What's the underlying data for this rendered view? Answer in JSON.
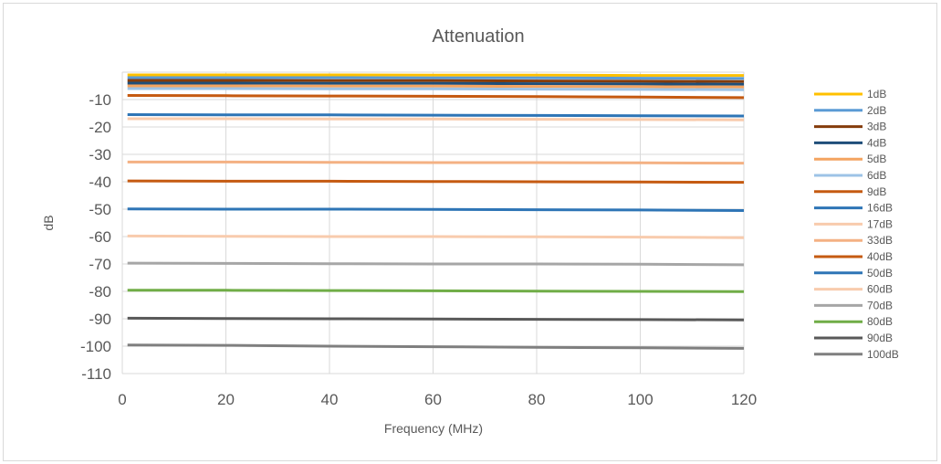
{
  "chart_data": {
    "type": "line",
    "title": "Attenuation",
    "xlabel": "Frequency (MHz)",
    "ylabel": "dB",
    "xlim": [
      0,
      120
    ],
    "ylim": [
      -110,
      0
    ],
    "x_ticks": [
      0,
      20,
      40,
      60,
      80,
      100,
      120
    ],
    "y_ticks": [
      -10,
      -20,
      -30,
      -40,
      -50,
      -60,
      -70,
      -80,
      -90,
      -100,
      -110
    ],
    "grid": true,
    "legend": "right",
    "x": [
      1,
      20,
      40,
      60,
      80,
      100,
      120
    ],
    "series": [
      {
        "name": "1dB",
        "color": "#FFC000",
        "values": [
          -1.0,
          -1.0,
          -1.0,
          -1.1,
          -1.1,
          -1.2,
          -1.2
        ]
      },
      {
        "name": "2dB",
        "color": "#5B9BD5",
        "values": [
          -2.0,
          -2.0,
          -2.0,
          -2.1,
          -2.1,
          -2.2,
          -2.3
        ]
      },
      {
        "name": "3dB",
        "color": "#843C0C",
        "values": [
          -3.0,
          -3.0,
          -3.1,
          -3.1,
          -3.2,
          -3.3,
          -3.4
        ]
      },
      {
        "name": "4dB",
        "color": "#1F4E79",
        "values": [
          -4.0,
          -4.0,
          -4.1,
          -4.1,
          -4.2,
          -4.3,
          -4.4
        ]
      },
      {
        "name": "5dB",
        "color": "#F4A460",
        "values": [
          -5.0,
          -5.0,
          -5.1,
          -5.1,
          -5.2,
          -5.3,
          -5.4
        ]
      },
      {
        "name": "6dB",
        "color": "#9DC3E6",
        "values": [
          -6.0,
          -6.0,
          -6.1,
          -6.1,
          -6.2,
          -6.3,
          -6.4
        ]
      },
      {
        "name": "9dB",
        "color": "#C55A11",
        "values": [
          -8.5,
          -8.6,
          -8.7,
          -8.8,
          -8.9,
          -9.1,
          -9.3
        ]
      },
      {
        "name": "16dB",
        "color": "#2E75B6",
        "values": [
          -15.5,
          -15.6,
          -15.6,
          -15.7,
          -15.8,
          -15.9,
          -16.0
        ]
      },
      {
        "name": "17dB",
        "color": "#F8CBAD",
        "values": [
          -17.0,
          -17.0,
          -17.1,
          -17.1,
          -17.2,
          -17.3,
          -17.4
        ]
      },
      {
        "name": "33dB",
        "color": "#F4B183",
        "values": [
          -32.8,
          -32.8,
          -32.9,
          -33.0,
          -33.0,
          -33.1,
          -33.2
        ]
      },
      {
        "name": "40dB",
        "color": "#C55A11",
        "values": [
          -39.7,
          -39.8,
          -39.8,
          -39.9,
          -40.0,
          -40.1,
          -40.2
        ]
      },
      {
        "name": "50dB",
        "color": "#2E75B6",
        "values": [
          -49.9,
          -50.0,
          -50.0,
          -50.1,
          -50.2,
          -50.3,
          -50.5
        ]
      },
      {
        "name": "60dB",
        "color": "#F8CBAD",
        "values": [
          -59.8,
          -59.9,
          -60.0,
          -60.0,
          -60.1,
          -60.2,
          -60.4
        ]
      },
      {
        "name": "70dB",
        "color": "#A6A6A6",
        "values": [
          -69.7,
          -69.8,
          -69.9,
          -70.0,
          -70.0,
          -70.1,
          -70.3
        ]
      },
      {
        "name": "80dB",
        "color": "#70AD47",
        "values": [
          -79.6,
          -79.6,
          -79.7,
          -79.8,
          -79.9,
          -80.0,
          -80.1
        ]
      },
      {
        "name": "90dB",
        "color": "#595959",
        "values": [
          -89.8,
          -89.9,
          -90.0,
          -90.1,
          -90.2,
          -90.3,
          -90.4
        ]
      },
      {
        "name": "100dB",
        "color": "#7F7F7F",
        "values": [
          -99.6,
          -99.7,
          -100.0,
          -100.2,
          -100.4,
          -100.6,
          -100.8
        ]
      }
    ]
  }
}
